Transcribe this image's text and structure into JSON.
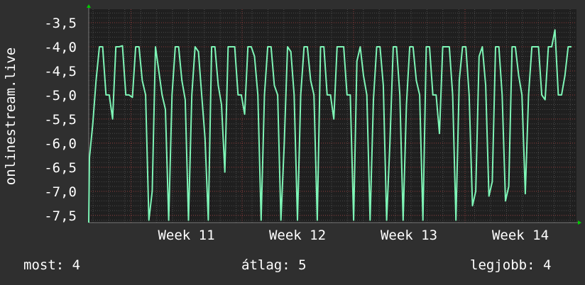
{
  "chart_data": {
    "type": "line",
    "ylabel": "onlinestream.live",
    "ylim": [
      -7.65,
      -3.22
    ],
    "yticks": [
      "-3,5",
      "-4,0",
      "-4,5",
      "-5,0",
      "-5,5",
      "-6,0",
      "-6,5",
      "-7,0",
      "-7,5"
    ],
    "ytick_values": [
      -3.5,
      -4.0,
      -4.5,
      -5.0,
      -5.5,
      -6.0,
      -6.5,
      -7.0,
      -7.5
    ],
    "xticks": [
      "Week 11",
      "Week 12",
      "Week 13",
      "Week 14"
    ],
    "grid": true,
    "series": [
      {
        "color": "#7ef5b6",
        "values": [
          -6.3,
          -5.6,
          -4.7,
          -4.0,
          -4.0,
          -5.0,
          -5.0,
          -5.5,
          -4.0,
          -4.0,
          -3.98,
          -5.0,
          -5.0,
          -5.05,
          -4.0,
          -4.0,
          -4.7,
          -5.0,
          -7.6,
          -7.0,
          -4.0,
          -4.5,
          -5.0,
          -5.3,
          -7.6,
          -5.0,
          -4.0,
          -4.0,
          -4.7,
          -5.1,
          -7.6,
          -5.0,
          -4.0,
          -4.1,
          -5.0,
          -5.9,
          -7.6,
          -4.0,
          -4.0,
          -4.8,
          -5.2,
          -6.6,
          -4.0,
          -4.0,
          -4.0,
          -5.0,
          -5.0,
          -5.4,
          -4.0,
          -4.0,
          -4.2,
          -5.0,
          -7.6,
          -5.0,
          -4.0,
          -4.0,
          -4.8,
          -5.0,
          -7.6,
          -6.0,
          -4.0,
          -4.1,
          -5.0,
          -7.6,
          -5.0,
          -4.0,
          -4.0,
          -4.7,
          -5.0,
          -7.6,
          -4.0,
          -4.0,
          -5.0,
          -5.0,
          -5.5,
          -4.0,
          -4.0,
          -4.0,
          -5.0,
          -5.0,
          -7.6,
          -4.3,
          -4.0,
          -4.6,
          -5.0,
          -7.6,
          -5.1,
          -4.0,
          -4.0,
          -4.8,
          -7.6,
          -6.0,
          -4.0,
          -4.0,
          -5.0,
          -7.6,
          -5.2,
          -4.0,
          -4.0,
          -4.7,
          -5.0,
          -7.6,
          -4.0,
          -4.0,
          -5.0,
          -5.0,
          -5.8,
          -4.0,
          -4.0,
          -4.0,
          -5.0,
          -7.6,
          -4.7,
          -4.0,
          -4.0,
          -5.0,
          -7.3,
          -7.0,
          -4.2,
          -4.0,
          -4.8,
          -7.1,
          -6.8,
          -4.0,
          -4.0,
          -5.0,
          -7.2,
          -6.9,
          -4.0,
          -4.0,
          -4.6,
          -5.0,
          -7.05,
          -5.0,
          -4.0,
          -4.0,
          -4.0,
          -5.0,
          -5.1,
          -4.0,
          -4.0,
          -3.65,
          -5.0,
          -5.0,
          -4.6,
          -4.0,
          -4.0
        ]
      }
    ]
  },
  "footer": {
    "current": "most: 4",
    "average": "átlag: 5",
    "best": "legjobb: 4"
  }
}
